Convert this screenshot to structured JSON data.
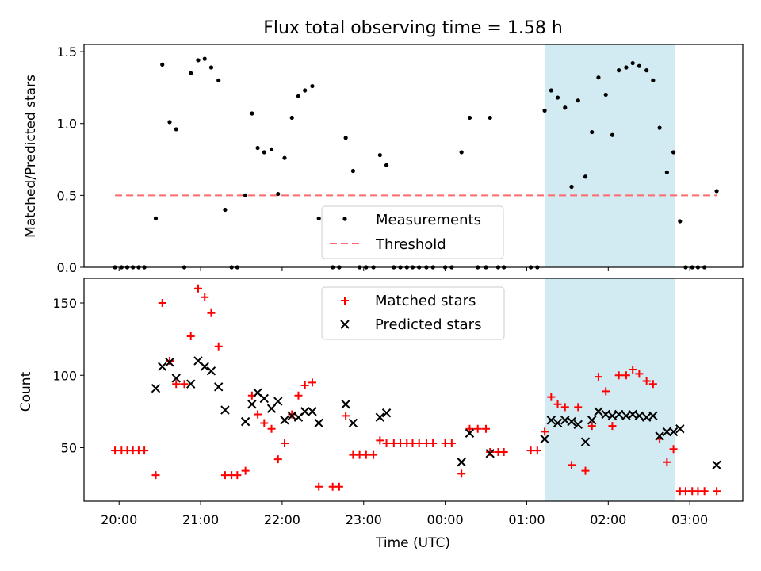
{
  "chart_data": [
    {
      "type": "scatter",
      "title": "Flux total observing time = 1.58 h",
      "ylabel": "Matched/Predicted stars",
      "xlabel": "",
      "ylim": [
        0,
        1.55
      ],
      "xlim_hours": [
        19.57,
        27.65
      ],
      "x_tick_labels": [
        "20:00",
        "21:00",
        "22:00",
        "23:00",
        "00:00",
        "01:00",
        "02:00",
        "03:00"
      ],
      "y_ticks": [
        0.0,
        0.5,
        1.0,
        1.5
      ],
      "y_tick_labels": [
        "0.0",
        "0.5",
        "1.0",
        "1.5"
      ],
      "shaded_interval_hours": [
        25.22,
        26.82
      ],
      "shade_color": "#add8e6",
      "threshold": {
        "name": "Threshold",
        "value": 0.5,
        "x_range_hours": [
          19.95,
          27.33
        ],
        "color": "#ff6b6b"
      },
      "legend_position": "lower center",
      "series": [
        {
          "name": "Measurements",
          "color": "#000000",
          "marker": "dot",
          "points": [
            [
              19.95,
              0.0
            ],
            [
              20.03,
              0.0
            ],
            [
              20.1,
              0.0
            ],
            [
              20.17,
              0.0
            ],
            [
              20.24,
              0.0
            ],
            [
              20.31,
              0.0
            ],
            [
              20.45,
              0.34
            ],
            [
              20.53,
              1.41
            ],
            [
              20.62,
              1.01
            ],
            [
              20.7,
              0.96
            ],
            [
              20.8,
              0.0
            ],
            [
              20.88,
              1.35
            ],
            [
              20.97,
              1.44
            ],
            [
              21.05,
              1.45
            ],
            [
              21.13,
              1.39
            ],
            [
              21.22,
              1.3
            ],
            [
              21.3,
              0.4
            ],
            [
              21.38,
              0.0
            ],
            [
              21.45,
              0.0
            ],
            [
              21.55,
              0.5
            ],
            [
              21.63,
              1.07
            ],
            [
              21.7,
              0.83
            ],
            [
              21.78,
              0.8
            ],
            [
              21.87,
              0.82
            ],
            [
              21.95,
              0.51
            ],
            [
              22.03,
              0.76
            ],
            [
              22.12,
              1.04
            ],
            [
              22.2,
              1.19
            ],
            [
              22.28,
              1.23
            ],
            [
              22.37,
              1.26
            ],
            [
              22.45,
              0.34
            ],
            [
              22.62,
              0.0
            ],
            [
              22.7,
              0.0
            ],
            [
              22.78,
              0.9
            ],
            [
              22.87,
              0.67
            ],
            [
              22.95,
              0.0
            ],
            [
              23.03,
              0.0
            ],
            [
              23.12,
              0.0
            ],
            [
              23.2,
              0.78
            ],
            [
              23.28,
              0.71
            ],
            [
              23.37,
              0.0
            ],
            [
              23.45,
              0.0
            ],
            [
              23.53,
              0.0
            ],
            [
              23.6,
              0.0
            ],
            [
              23.68,
              0.0
            ],
            [
              23.77,
              0.0
            ],
            [
              23.85,
              0.0
            ],
            [
              24.0,
              0.0
            ],
            [
              24.08,
              0.0
            ],
            [
              24.2,
              0.8
            ],
            [
              24.3,
              1.04
            ],
            [
              24.4,
              0.0
            ],
            [
              24.5,
              0.0
            ],
            [
              24.55,
              1.04
            ],
            [
              24.65,
              0.0
            ],
            [
              24.72,
              0.0
            ],
            [
              25.05,
              0.0
            ],
            [
              25.13,
              0.0
            ],
            [
              25.22,
              1.09
            ],
            [
              25.3,
              1.23
            ],
            [
              25.38,
              1.18
            ],
            [
              25.47,
              1.11
            ],
            [
              25.55,
              0.56
            ],
            [
              25.63,
              1.16
            ],
            [
              25.72,
              0.63
            ],
            [
              25.8,
              0.94
            ],
            [
              25.88,
              1.32
            ],
            [
              25.97,
              1.2
            ],
            [
              26.05,
              0.92
            ],
            [
              26.13,
              1.37
            ],
            [
              26.22,
              1.39
            ],
            [
              26.3,
              1.42
            ],
            [
              26.38,
              1.4
            ],
            [
              26.47,
              1.37
            ],
            [
              26.55,
              1.3
            ],
            [
              26.63,
              0.97
            ],
            [
              26.72,
              0.66
            ],
            [
              26.8,
              0.8
            ],
            [
              26.88,
              0.32
            ],
            [
              26.95,
              0.0
            ],
            [
              27.03,
              0.0
            ],
            [
              27.1,
              0.0
            ],
            [
              27.18,
              0.0
            ],
            [
              27.33,
              0.53
            ]
          ]
        }
      ]
    },
    {
      "type": "scatter",
      "title": "",
      "xlabel": "Time (UTC)",
      "ylabel": "Count",
      "ylim": [
        13,
        167
      ],
      "xlim_hours": [
        19.57,
        27.65
      ],
      "x_tick_labels": [
        "20:00",
        "21:00",
        "22:00",
        "23:00",
        "00:00",
        "01:00",
        "02:00",
        "03:00"
      ],
      "y_ticks": [
        50,
        100,
        150
      ],
      "y_tick_labels": [
        "50",
        "100",
        "150"
      ],
      "shaded_interval_hours": [
        25.22,
        26.82
      ],
      "shade_color": "#add8e6",
      "legend_position": "upper center",
      "series": [
        {
          "name": "Matched stars",
          "color": "#ff0000",
          "marker": "plus",
          "points": [
            [
              19.95,
              48
            ],
            [
              20.03,
              48
            ],
            [
              20.1,
              48
            ],
            [
              20.17,
              48
            ],
            [
              20.24,
              48
            ],
            [
              20.31,
              48
            ],
            [
              20.45,
              31
            ],
            [
              20.53,
              150
            ],
            [
              20.62,
              110
            ],
            [
              20.7,
              94
            ],
            [
              20.8,
              94
            ],
            [
              20.88,
              127
            ],
            [
              20.97,
              160
            ],
            [
              21.05,
              154
            ],
            [
              21.13,
              143
            ],
            [
              21.22,
              120
            ],
            [
              21.3,
              31
            ],
            [
              21.38,
              31
            ],
            [
              21.45,
              31
            ],
            [
              21.55,
              34
            ],
            [
              21.63,
              86
            ],
            [
              21.7,
              73
            ],
            [
              21.78,
              67
            ],
            [
              21.87,
              63
            ],
            [
              21.95,
              42
            ],
            [
              22.03,
              53
            ],
            [
              22.12,
              73
            ],
            [
              22.2,
              86
            ],
            [
              22.28,
              93
            ],
            [
              22.37,
              95
            ],
            [
              22.45,
              23
            ],
            [
              22.62,
              23
            ],
            [
              22.7,
              23
            ],
            [
              22.78,
              72
            ],
            [
              22.87,
              45
            ],
            [
              22.95,
              45
            ],
            [
              23.03,
              45
            ],
            [
              23.12,
              45
            ],
            [
              23.2,
              55
            ],
            [
              23.28,
              53
            ],
            [
              23.37,
              53
            ],
            [
              23.45,
              53
            ],
            [
              23.53,
              53
            ],
            [
              23.6,
              53
            ],
            [
              23.68,
              53
            ],
            [
              23.77,
              53
            ],
            [
              23.85,
              53
            ],
            [
              24.0,
              53
            ],
            [
              24.08,
              53
            ],
            [
              24.2,
              32
            ],
            [
              24.3,
              63
            ],
            [
              24.4,
              63
            ],
            [
              24.5,
              63
            ],
            [
              24.55,
              47
            ],
            [
              24.65,
              47
            ],
            [
              24.72,
              47
            ],
            [
              25.05,
              48
            ],
            [
              25.13,
              48
            ],
            [
              25.22,
              61
            ],
            [
              25.3,
              85
            ],
            [
              25.38,
              80
            ],
            [
              25.47,
              78
            ],
            [
              25.55,
              38
            ],
            [
              25.63,
              78
            ],
            [
              25.72,
              34
            ],
            [
              25.8,
              65
            ],
            [
              25.88,
              99
            ],
            [
              25.97,
              89
            ],
            [
              26.05,
              65
            ],
            [
              26.13,
              100
            ],
            [
              26.22,
              100
            ],
            [
              26.3,
              104
            ],
            [
              26.38,
              101
            ],
            [
              26.47,
              96
            ],
            [
              26.55,
              94
            ],
            [
              26.63,
              56
            ],
            [
              26.72,
              40
            ],
            [
              26.8,
              49
            ],
            [
              26.88,
              20
            ],
            [
              26.95,
              20
            ],
            [
              27.03,
              20
            ],
            [
              27.1,
              20
            ],
            [
              27.18,
              20
            ],
            [
              27.33,
              20
            ]
          ]
        },
        {
          "name": "Predicted stars",
          "color": "#000000",
          "marker": "x",
          "points": [
            [
              20.45,
              91
            ],
            [
              20.53,
              106
            ],
            [
              20.62,
              109
            ],
            [
              20.7,
              98
            ],
            [
              20.88,
              94
            ],
            [
              20.97,
              110
            ],
            [
              21.05,
              106
            ],
            [
              21.13,
              103
            ],
            [
              21.22,
              92
            ],
            [
              21.3,
              76
            ],
            [
              21.55,
              68
            ],
            [
              21.63,
              80
            ],
            [
              21.7,
              88
            ],
            [
              21.78,
              84
            ],
            [
              21.87,
              77
            ],
            [
              21.95,
              82
            ],
            [
              22.03,
              69
            ],
            [
              22.12,
              72
            ],
            [
              22.2,
              71
            ],
            [
              22.28,
              75
            ],
            [
              22.37,
              75
            ],
            [
              22.45,
              67
            ],
            [
              22.78,
              80
            ],
            [
              22.87,
              67
            ],
            [
              23.2,
              71
            ],
            [
              23.28,
              74
            ],
            [
              24.2,
              40
            ],
            [
              24.3,
              60
            ],
            [
              24.55,
              46
            ],
            [
              25.22,
              56
            ],
            [
              25.3,
              69
            ],
            [
              25.38,
              67
            ],
            [
              25.47,
              69
            ],
            [
              25.55,
              68
            ],
            [
              25.63,
              66
            ],
            [
              25.72,
              54
            ],
            [
              25.8,
              69
            ],
            [
              25.88,
              75
            ],
            [
              25.97,
              73
            ],
            [
              26.05,
              72
            ],
            [
              26.13,
              73
            ],
            [
              26.22,
              72
            ],
            [
              26.3,
              73
            ],
            [
              26.38,
              72
            ],
            [
              26.47,
              71
            ],
            [
              26.55,
              72
            ],
            [
              26.63,
              58
            ],
            [
              26.72,
              61
            ],
            [
              26.8,
              61
            ],
            [
              26.88,
              63
            ],
            [
              27.33,
              38
            ]
          ]
        }
      ]
    }
  ]
}
